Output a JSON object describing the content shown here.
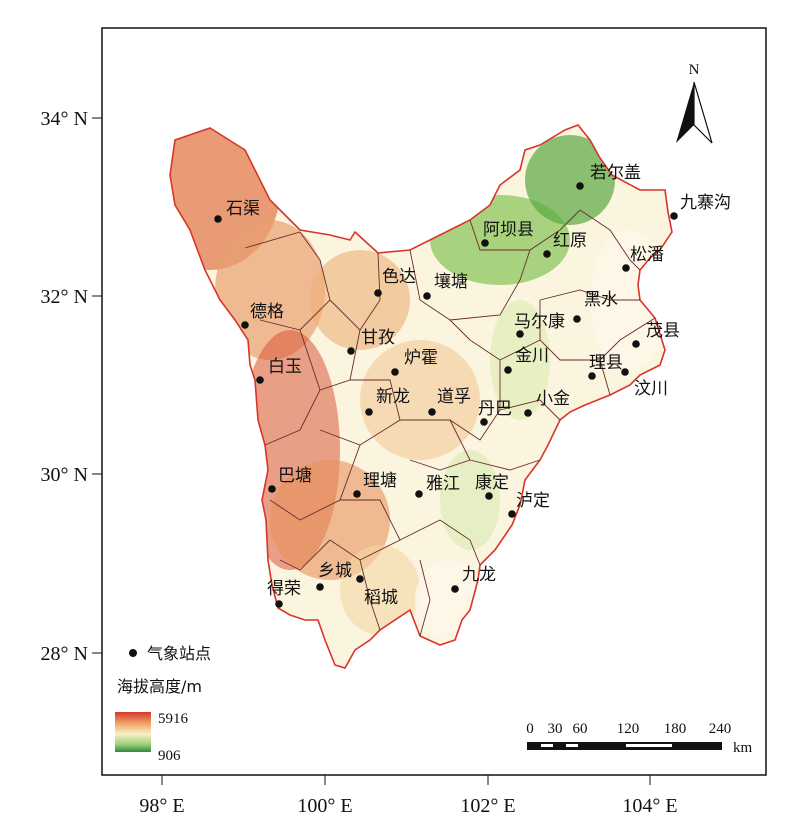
{
  "lat_labels": [
    "34° N",
    "32° N",
    "30° N",
    "28° N"
  ],
  "lon_labels": [
    "98° E",
    "100° E",
    "102° E",
    "104° E"
  ],
  "north_label": "N",
  "legend": {
    "station_label": "气象站点",
    "elevation_title": "海拔高度/m",
    "max_value": "5916",
    "min_value": "906",
    "colors": [
      "#d2392b",
      "#f0a96a",
      "#f8efc8",
      "#a3d27c",
      "#2e8b3a"
    ]
  },
  "scalebar": {
    "ticks": [
      "0",
      "30",
      "60",
      "120",
      "180",
      "240"
    ],
    "unit": "km"
  },
  "stations": [
    {
      "name": "若尔盖"
    },
    {
      "name": "九寨沟"
    },
    {
      "name": "阿坝县"
    },
    {
      "name": "红原"
    },
    {
      "name": "松潘"
    },
    {
      "name": "石渠"
    },
    {
      "name": "色达"
    },
    {
      "name": "壤塘"
    },
    {
      "name": "黑水"
    },
    {
      "name": "马尔康"
    },
    {
      "name": "茂县"
    },
    {
      "name": "德格"
    },
    {
      "name": "甘孜"
    },
    {
      "name": "炉霍"
    },
    {
      "name": "金川"
    },
    {
      "name": "理县"
    },
    {
      "name": "汶川"
    },
    {
      "name": "白玉"
    },
    {
      "name": "新龙"
    },
    {
      "name": "道孚"
    },
    {
      "name": "丹巴"
    },
    {
      "name": "小金"
    },
    {
      "name": "巴塘"
    },
    {
      "name": "理塘"
    },
    {
      "name": "雅江"
    },
    {
      "name": "康定"
    },
    {
      "name": "泸定"
    },
    {
      "name": "乡城"
    },
    {
      "name": "得荣"
    },
    {
      "name": "稻城"
    },
    {
      "name": "九龙"
    }
  ]
}
